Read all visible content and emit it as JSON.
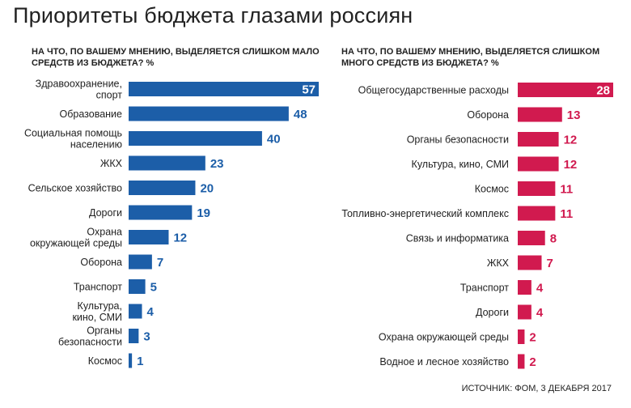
{
  "title": "Приоритеты бюджета глазами россиян",
  "source": "ИСТОЧНИК: ФОМ, 3 ДЕКАБРЯ 2017",
  "colors": {
    "left": "#1c5ea8",
    "right": "#d11a4f"
  },
  "chart_data": [
    {
      "type": "bar",
      "orientation": "horizontal",
      "title": "НА ЧТО, ПО ВАШЕМУ МНЕНИЮ, ВЫДЕЛЯЕТСЯ СЛИШКОМ МАЛО СРЕДСТВ ИЗ БЮДЖЕТА? %",
      "unit": "%",
      "categories": [
        "Здравоохранение, спорт",
        "Образование",
        "Социальная помощь населению",
        "ЖКХ",
        "Сельское хозяйство",
        "Дороги",
        "Охрана окружающей среды",
        "Оборона",
        "Транспорт",
        "Культура, кино, СМИ",
        "Органы безопасности",
        "Космос"
      ],
      "label_lines": [
        [
          "Здравоохранение,",
          "спорт"
        ],
        [
          "Образование"
        ],
        [
          "Социальная помощь",
          "населению"
        ],
        [
          "ЖКХ"
        ],
        [
          "Сельское хозяйство"
        ],
        [
          "Дороги"
        ],
        [
          "Охрана",
          "окружающей среды"
        ],
        [
          "Оборона"
        ],
        [
          "Транспорт"
        ],
        [
          "Культура,",
          "кино, СМИ"
        ],
        [
          "Органы",
          "безопасности"
        ],
        [
          "Космос"
        ]
      ],
      "values": [
        57,
        48,
        40,
        23,
        20,
        19,
        12,
        7,
        5,
        4,
        3,
        1
      ]
    },
    {
      "type": "bar",
      "orientation": "horizontal",
      "title": "НА ЧТО, ПО ВАШЕМУ МНЕНИЮ, ВЫДЕЛЯЕТСЯ СЛИШКОМ МНОГО СРЕДСТВ ИЗ БЮДЖЕТА? %",
      "unit": "%",
      "categories": [
        "Общегосударственные расходы",
        "Оборона",
        "Органы безопасности",
        "Культура, кино, СМИ",
        "Космос",
        "Топливно-энергетический комплекс",
        "Связь и информатика",
        "ЖКХ",
        "Транспорт",
        "Дороги",
        "Охрана окружающей среды",
        "Водное и лесное хозяйство"
      ],
      "label_lines": [
        [
          "Общегосударственные расходы"
        ],
        [
          "Оборона"
        ],
        [
          "Органы безопасности"
        ],
        [
          "Культура, кино, СМИ"
        ],
        [
          "Космос"
        ],
        [
          "Топливно-энергетический комплекс"
        ],
        [
          "Связь и информатика"
        ],
        [
          "ЖКХ"
        ],
        [
          "Транспорт"
        ],
        [
          "Дороги"
        ],
        [
          "Охрана окружающей среды"
        ],
        [
          "Водное и лесное хозяйство"
        ]
      ],
      "values": [
        28,
        13,
        12,
        12,
        11,
        11,
        8,
        7,
        4,
        4,
        2,
        2
      ]
    }
  ]
}
